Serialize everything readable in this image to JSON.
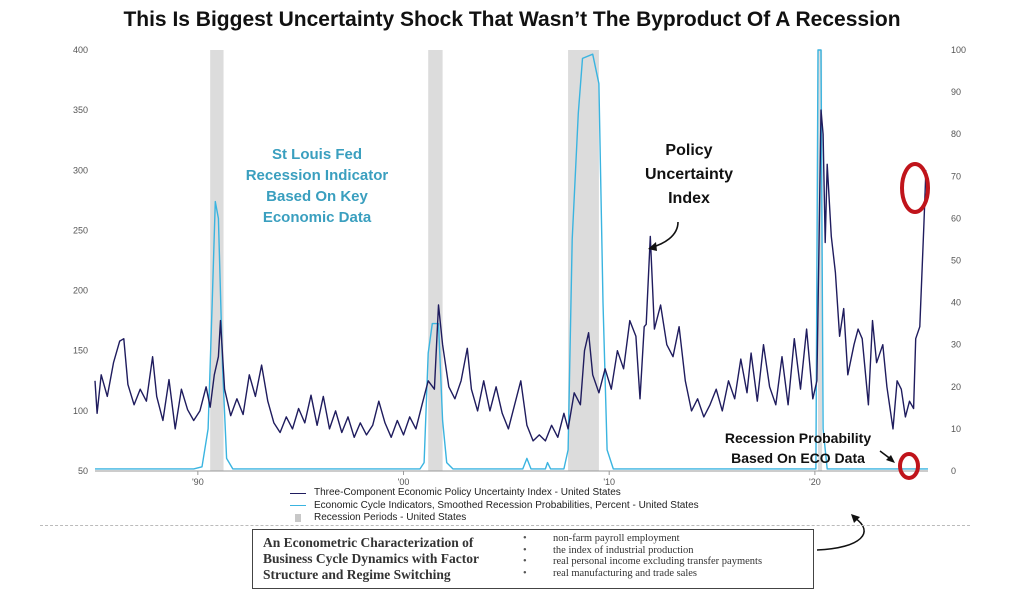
{
  "title": "This Is Biggest Uncertainty Shock That Wasn’t The Byproduct Of A Recession",
  "chart_data": {
    "type": "line",
    "title": "This Is Biggest Uncertainty Shock That Wasn’t The Byproduct Of A Recession",
    "left_axis": {
      "min": 50,
      "max": 400,
      "ticks": [
        50,
        100,
        150,
        200,
        250,
        300,
        350,
        400
      ]
    },
    "right_axis": {
      "min": 0,
      "max": 100,
      "ticks": [
        0,
        10,
        20,
        30,
        40,
        50,
        60,
        70,
        80,
        90,
        100
      ]
    },
    "x_axis": {
      "start": 1985,
      "end": 2025.5,
      "tick_labels": [
        {
          "year": 1990,
          "label": "'90"
        },
        {
          "year": 2000,
          "label": "'00"
        },
        {
          "year": 2010,
          "label": "'10"
        },
        {
          "year": 2020,
          "label": "'20"
        }
      ]
    },
    "recessions": [
      {
        "start": 1990.6,
        "end": 1991.25
      },
      {
        "start": 2001.2,
        "end": 2001.9
      },
      {
        "start": 2008.0,
        "end": 2009.5
      },
      {
        "start": 2020.15,
        "end": 2020.35
      }
    ],
    "series": [
      {
        "name": "Three-Component Economic Policy Uncertainty Index - United States",
        "color": "#1f1c5e",
        "axis": "left",
        "points": [
          [
            1985.0,
            125
          ],
          [
            1985.1,
            98
          ],
          [
            1985.3,
            130
          ],
          [
            1985.6,
            112
          ],
          [
            1985.9,
            140
          ],
          [
            1986.2,
            158
          ],
          [
            1986.4,
            160
          ],
          [
            1986.6,
            122
          ],
          [
            1986.9,
            105
          ],
          [
            1987.2,
            118
          ],
          [
            1987.5,
            108
          ],
          [
            1987.8,
            145
          ],
          [
            1988.0,
            112
          ],
          [
            1988.3,
            92
          ],
          [
            1988.6,
            126
          ],
          [
            1988.9,
            85
          ],
          [
            1989.2,
            118
          ],
          [
            1989.5,
            101
          ],
          [
            1989.8,
            92
          ],
          [
            1990.1,
            100
          ],
          [
            1990.4,
            120
          ],
          [
            1990.6,
            103
          ],
          [
            1990.8,
            130
          ],
          [
            1991.0,
            145
          ],
          [
            1991.1,
            175
          ],
          [
            1991.3,
            118
          ],
          [
            1991.6,
            96
          ],
          [
            1991.9,
            110
          ],
          [
            1992.2,
            97
          ],
          [
            1992.5,
            130
          ],
          [
            1992.8,
            112
          ],
          [
            1993.1,
            138
          ],
          [
            1993.4,
            108
          ],
          [
            1993.7,
            90
          ],
          [
            1994.0,
            82
          ],
          [
            1994.3,
            95
          ],
          [
            1994.6,
            85
          ],
          [
            1994.9,
            102
          ],
          [
            1995.2,
            90
          ],
          [
            1995.5,
            113
          ],
          [
            1995.8,
            88
          ],
          [
            1996.1,
            112
          ],
          [
            1996.4,
            85
          ],
          [
            1996.7,
            100
          ],
          [
            1997.0,
            82
          ],
          [
            1997.3,
            95
          ],
          [
            1997.6,
            78
          ],
          [
            1997.9,
            90
          ],
          [
            1998.2,
            80
          ],
          [
            1998.5,
            88
          ],
          [
            1998.8,
            108
          ],
          [
            1999.1,
            90
          ],
          [
            1999.4,
            78
          ],
          [
            1999.7,
            92
          ],
          [
            2000.0,
            80
          ],
          [
            2000.3,
            95
          ],
          [
            2000.6,
            85
          ],
          [
            2000.9,
            105
          ],
          [
            2001.2,
            125
          ],
          [
            2001.5,
            118
          ],
          [
            2001.7,
            188
          ],
          [
            2001.9,
            155
          ],
          [
            2002.2,
            120
          ],
          [
            2002.5,
            110
          ],
          [
            2002.8,
            125
          ],
          [
            2003.1,
            152
          ],
          [
            2003.3,
            118
          ],
          [
            2003.6,
            100
          ],
          [
            2003.9,
            125
          ],
          [
            2004.2,
            100
          ],
          [
            2004.5,
            120
          ],
          [
            2004.8,
            98
          ],
          [
            2005.1,
            85
          ],
          [
            2005.4,
            105
          ],
          [
            2005.7,
            125
          ],
          [
            2006.0,
            88
          ],
          [
            2006.3,
            75
          ],
          [
            2006.6,
            80
          ],
          [
            2006.9,
            75
          ],
          [
            2007.2,
            88
          ],
          [
            2007.5,
            78
          ],
          [
            2007.8,
            98
          ],
          [
            2008.0,
            85
          ],
          [
            2008.3,
            115
          ],
          [
            2008.6,
            105
          ],
          [
            2008.8,
            150
          ],
          [
            2009.0,
            165
          ],
          [
            2009.2,
            130
          ],
          [
            2009.5,
            115
          ],
          [
            2009.8,
            135
          ],
          [
            2010.1,
            118
          ],
          [
            2010.4,
            150
          ],
          [
            2010.7,
            135
          ],
          [
            2011.0,
            175
          ],
          [
            2011.3,
            162
          ],
          [
            2011.5,
            110
          ],
          [
            2011.7,
            170
          ],
          [
            2011.8,
            172
          ],
          [
            2012.0,
            245
          ],
          [
            2012.2,
            168
          ],
          [
            2012.5,
            188
          ],
          [
            2012.8,
            155
          ],
          [
            2013.1,
            145
          ],
          [
            2013.4,
            170
          ],
          [
            2013.7,
            125
          ],
          [
            2014.0,
            100
          ],
          [
            2014.3,
            110
          ],
          [
            2014.6,
            95
          ],
          [
            2014.9,
            105
          ],
          [
            2015.2,
            118
          ],
          [
            2015.5,
            100
          ],
          [
            2015.8,
            125
          ],
          [
            2016.1,
            110
          ],
          [
            2016.4,
            143
          ],
          [
            2016.7,
            115
          ],
          [
            2016.9,
            148
          ],
          [
            2017.2,
            108
          ],
          [
            2017.5,
            155
          ],
          [
            2017.8,
            120
          ],
          [
            2018.1,
            105
          ],
          [
            2018.4,
            145
          ],
          [
            2018.7,
            105
          ],
          [
            2019.0,
            160
          ],
          [
            2019.3,
            118
          ],
          [
            2019.6,
            168
          ],
          [
            2019.9,
            110
          ],
          [
            2020.1,
            125
          ],
          [
            2020.2,
            238
          ],
          [
            2020.3,
            350
          ],
          [
            2020.4,
            330
          ],
          [
            2020.5,
            240
          ],
          [
            2020.6,
            305
          ],
          [
            2020.8,
            245
          ],
          [
            2021.0,
            215
          ],
          [
            2021.2,
            162
          ],
          [
            2021.4,
            185
          ],
          [
            2021.6,
            130
          ],
          [
            2021.9,
            155
          ],
          [
            2022.1,
            168
          ],
          [
            2022.3,
            160
          ],
          [
            2022.6,
            105
          ],
          [
            2022.8,
            175
          ],
          [
            2023.0,
            140
          ],
          [
            2023.3,
            155
          ],
          [
            2023.5,
            120
          ],
          [
            2023.8,
            85
          ],
          [
            2024.0,
            125
          ],
          [
            2024.2,
            118
          ],
          [
            2024.4,
            95
          ],
          [
            2024.6,
            108
          ],
          [
            2024.8,
            102
          ],
          [
            2024.9,
            160
          ],
          [
            2025.1,
            170
          ],
          [
            2025.3,
            255
          ],
          [
            2025.4,
            300
          ]
        ]
      },
      {
        "name": "Economic Cycle Indicators, Smoothed Recession Probabilities, Percent - United States",
        "color": "#3ab4e0",
        "axis": "right",
        "points": [
          [
            1985.0,
            0.5
          ],
          [
            1989.8,
            0.5
          ],
          [
            1990.2,
            1
          ],
          [
            1990.5,
            10
          ],
          [
            1990.7,
            40
          ],
          [
            1990.85,
            64
          ],
          [
            1991.0,
            60
          ],
          [
            1991.2,
            25
          ],
          [
            1991.4,
            3
          ],
          [
            1991.7,
            0.5
          ],
          [
            2000.8,
            0.5
          ],
          [
            2001.0,
            2
          ],
          [
            2001.2,
            28
          ],
          [
            2001.4,
            35
          ],
          [
            2001.7,
            35
          ],
          [
            2001.9,
            12
          ],
          [
            2002.1,
            2
          ],
          [
            2002.4,
            0.5
          ],
          [
            2005.8,
            0.5
          ],
          [
            2006.0,
            3
          ],
          [
            2006.2,
            0.5
          ],
          [
            2006.9,
            0.5
          ],
          [
            2007.0,
            2
          ],
          [
            2007.15,
            0.5
          ],
          [
            2007.8,
            0.5
          ],
          [
            2008.0,
            5
          ],
          [
            2008.2,
            55
          ],
          [
            2008.5,
            85
          ],
          [
            2008.7,
            98
          ],
          [
            2009.2,
            99
          ],
          [
            2009.5,
            92
          ],
          [
            2009.7,
            40
          ],
          [
            2009.9,
            5
          ],
          [
            2010.2,
            0.5
          ],
          [
            2020.05,
            0.5
          ],
          [
            2020.15,
            100
          ],
          [
            2020.3,
            100
          ],
          [
            2020.4,
            10
          ],
          [
            2020.6,
            0.5
          ],
          [
            2025.5,
            0.5
          ]
        ]
      }
    ],
    "legend": [
      {
        "label": "Three-Component Economic Policy Uncertainty Index - United States",
        "color": "#1f1c5e",
        "kind": "line"
      },
      {
        "label": "Economic Cycle Indicators, Smoothed Recession Probabilities, Percent - United States",
        "color": "#3ab4e0",
        "kind": "line"
      },
      {
        "label": "Recession Periods - United States",
        "color": "#c8c8c8",
        "kind": "box"
      }
    ],
    "annotations": {
      "st_louis": [
        "St Louis Fed",
        "Recession Indicator",
        "Based On Key",
        "Economic Data"
      ],
      "policy": [
        "Policy",
        "Uncertainty",
        "Index"
      ],
      "recession_prob": [
        "Recession Probability",
        "Based On ECO Data"
      ]
    }
  },
  "paper": {
    "title_lines": [
      "An Econometric Characterization of",
      "Business Cycle Dynamics with Factor",
      "Structure and Regime Switching"
    ],
    "items": [
      "non-farm payroll employment",
      "the index of industrial production",
      "real personal income excluding transfer payments",
      "real manufacturing and trade sales"
    ]
  },
  "colors": {
    "uncertainty": "#1f1c5e",
    "recession_prob": "#3ab4e0",
    "recession_band": "#dcdcdc",
    "highlight": "#c0141b",
    "annotation_blue": "#3a9fbf"
  }
}
